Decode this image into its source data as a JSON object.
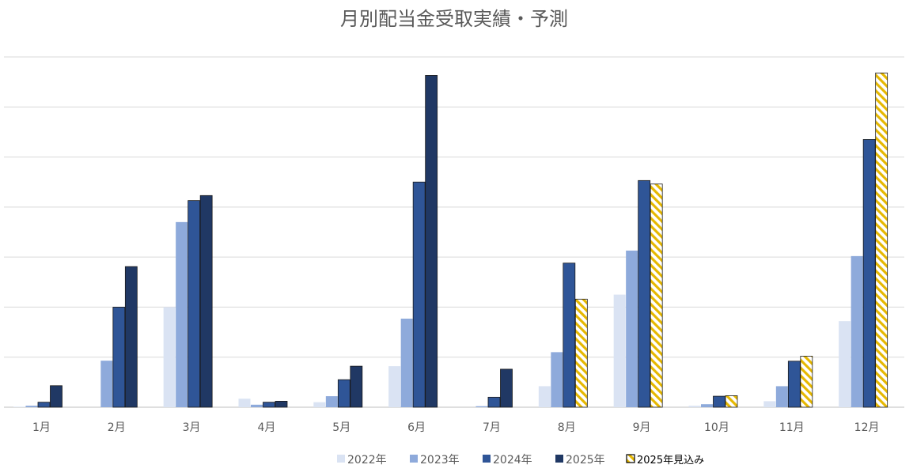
{
  "chart_data": {
    "type": "bar",
    "title": "月別配当金受取実績・予測",
    "xlabel": "",
    "ylabel": "",
    "categories": [
      "1月",
      "2月",
      "3月",
      "4月",
      "5月",
      "6月",
      "7月",
      "8月",
      "9月",
      "10月",
      "11月",
      "12月"
    ],
    "ylim": [
      0,
      70
    ],
    "grid": true,
    "legend_position": "bottom",
    "series": [
      {
        "name": "2022年",
        "color": "#dae3f3",
        "pattern": "solid",
        "values": [
          0.1,
          null,
          20,
          1.7,
          1.0,
          8.2,
          null,
          4.2,
          22.5,
          0.3,
          1.2,
          17.2
        ]
      },
      {
        "name": "2023年",
        "color": "#8eaadb",
        "pattern": "solid",
        "values": [
          0.3,
          9.3,
          37.0,
          0.5,
          2.2,
          17.7,
          0.2,
          11.0,
          31.3,
          0.6,
          4.2,
          30.2
        ]
      },
      {
        "name": "2024年",
        "color": "#2f5597",
        "pattern": "solid",
        "values": [
          1.0,
          20,
          41.3,
          1.0,
          5.5,
          45.0,
          2.0,
          28.8,
          45.3,
          2.2,
          9.2,
          53.5
        ]
      },
      {
        "name": "2025年",
        "color": "#203864",
        "pattern": "solid",
        "values": [
          4.3,
          28.1,
          42.3,
          1.2,
          8.2,
          66.3,
          7.6,
          null,
          null,
          null,
          null,
          null
        ]
      },
      {
        "name": "2025年見込み",
        "color": "#ffd966",
        "pattern": "hatched",
        "values": [
          null,
          null,
          null,
          null,
          null,
          null,
          null,
          21.6,
          44.6,
          2.3,
          10.2,
          66.8
        ]
      }
    ]
  }
}
